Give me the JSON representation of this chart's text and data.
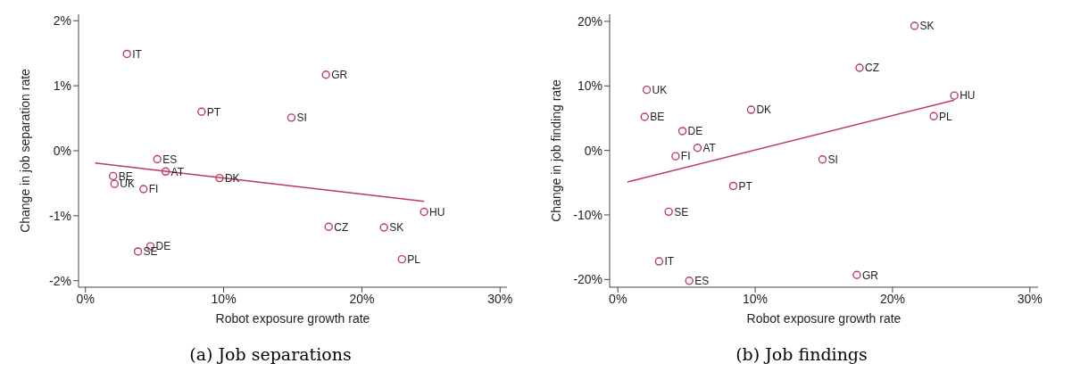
{
  "chart_data": [
    {
      "type": "scatter",
      "title": "(a) Job separations",
      "xlabel": "Robot exposure growth rate",
      "ylabel": "Change in job separation rate",
      "marker": "circle",
      "xlim": [
        -0.5,
        30.5
      ],
      "xticks": [
        {
          "value": 0,
          "label": "0%"
        },
        {
          "value": 10,
          "label": "10%"
        },
        {
          "value": 20,
          "label": "20%"
        },
        {
          "value": 30,
          "label": "30%"
        }
      ],
      "ylim": [
        -2.1,
        2.1
      ],
      "yticks": [
        {
          "value": -2,
          "label": "-2%"
        },
        {
          "value": -1,
          "label": "-1%"
        },
        {
          "value": 0,
          "label": "0%"
        },
        {
          "value": 1,
          "label": "1%"
        },
        {
          "value": 2,
          "label": "2%"
        }
      ],
      "series": [
        {
          "color": "#c0395a",
          "x": [
            3.0,
            17.4,
            8.4,
            14.9,
            5.2,
            5.8,
            2.0,
            2.1,
            4.2,
            9.7,
            24.5,
            17.6,
            21.6,
            4.7,
            3.8,
            22.9
          ],
          "values": [
            1.49,
            1.17,
            0.6,
            0.51,
            -0.13,
            -0.32,
            -0.39,
            -0.51,
            -0.59,
            -0.42,
            -0.94,
            -1.17,
            -1.18,
            -1.47,
            -1.55,
            -1.67
          ]
        },
        {
          "type": "line",
          "marker": "none",
          "color": "#c0395a",
          "x": [
            0.7,
            24.5
          ],
          "values": [
            -0.19,
            -0.78
          ]
        }
      ],
      "annotations": [
        {
          "text": "IT",
          "x": 3.0,
          "y": 1.49
        },
        {
          "text": "GR",
          "x": 17.4,
          "y": 1.17
        },
        {
          "text": "PT",
          "x": 8.4,
          "y": 0.6
        },
        {
          "text": "SI",
          "x": 14.9,
          "y": 0.51
        },
        {
          "text": "ES",
          "x": 5.2,
          "y": -0.13
        },
        {
          "text": "AT",
          "x": 5.8,
          "y": -0.32
        },
        {
          "text": "BE",
          "x": 2.0,
          "y": -0.39
        },
        {
          "text": "UK",
          "x": 2.1,
          "y": -0.51
        },
        {
          "text": "FI",
          "x": 4.2,
          "y": -0.59
        },
        {
          "text": "DK",
          "x": 9.7,
          "y": -0.42
        },
        {
          "text": "HU",
          "x": 24.5,
          "y": -0.94
        },
        {
          "text": "CZ",
          "x": 17.6,
          "y": -1.17
        },
        {
          "text": "SK",
          "x": 21.6,
          "y": -1.18
        },
        {
          "text": "DE",
          "x": 4.7,
          "y": -1.47
        },
        {
          "text": "SE",
          "x": 3.8,
          "y": -1.55
        },
        {
          "text": "PL",
          "x": 22.9,
          "y": -1.67
        }
      ]
    },
    {
      "type": "scatter",
      "title": "(b) Job findings",
      "xlabel": "Robot exposure growth rate",
      "ylabel": "Change in job finding rate",
      "marker": "circle",
      "xlim": [
        -0.6,
        30.6
      ],
      "xticks": [
        {
          "value": 0,
          "label": "0%"
        },
        {
          "value": 10,
          "label": "10%"
        },
        {
          "value": 20,
          "label": "20%"
        },
        {
          "value": 30,
          "label": "30%"
        }
      ],
      "ylim": [
        -21.2,
        21.1
      ],
      "yticks": [
        {
          "value": -20,
          "label": "-20%"
        },
        {
          "value": -10,
          "label": "-10%"
        },
        {
          "value": 0,
          "label": "0%"
        },
        {
          "value": 10,
          "label": "10%"
        },
        {
          "value": 20,
          "label": "20%"
        }
      ],
      "series": [
        {
          "color": "#c0395a",
          "x": [
            2.1,
            1.95,
            4.7,
            5.8,
            4.2,
            9.7,
            21.6,
            17.6,
            24.5,
            23.0,
            14.9,
            8.4,
            3.7,
            3.0,
            5.2,
            17.4
          ],
          "values": [
            9.4,
            5.2,
            3.0,
            0.4,
            -0.9,
            6.3,
            19.3,
            12.8,
            8.5,
            5.3,
            -1.4,
            -5.5,
            -9.5,
            -17.2,
            -20.2,
            -19.3
          ]
        },
        {
          "type": "line",
          "marker": "none",
          "color": "#c0395a",
          "x": [
            0.7,
            24.5
          ],
          "values": [
            -4.9,
            7.8
          ]
        }
      ],
      "annotations": [
        {
          "text": "UK",
          "x": 2.1,
          "y": 9.4
        },
        {
          "text": "BE",
          "x": 1.95,
          "y": 5.2
        },
        {
          "text": "DE",
          "x": 4.7,
          "y": 3.0
        },
        {
          "text": "AT",
          "x": 5.8,
          "y": 0.4
        },
        {
          "text": "FI",
          "x": 4.2,
          "y": -0.9
        },
        {
          "text": "DK",
          "x": 9.7,
          "y": 6.3
        },
        {
          "text": "SK",
          "x": 21.6,
          "y": 19.3
        },
        {
          "text": "CZ",
          "x": 17.6,
          "y": 12.8
        },
        {
          "text": "HU",
          "x": 24.5,
          "y": 8.5
        },
        {
          "text": "PL",
          "x": 23.0,
          "y": 5.3
        },
        {
          "text": "SI",
          "x": 14.9,
          "y": -1.4
        },
        {
          "text": "PT",
          "x": 8.4,
          "y": -5.5
        },
        {
          "text": "SE",
          "x": 3.7,
          "y": -9.5
        },
        {
          "text": "IT",
          "x": 3.0,
          "y": -17.2
        },
        {
          "text": "ES",
          "x": 5.2,
          "y": -20.2
        },
        {
          "text": "GR",
          "x": 17.4,
          "y": -19.3
        }
      ]
    }
  ]
}
